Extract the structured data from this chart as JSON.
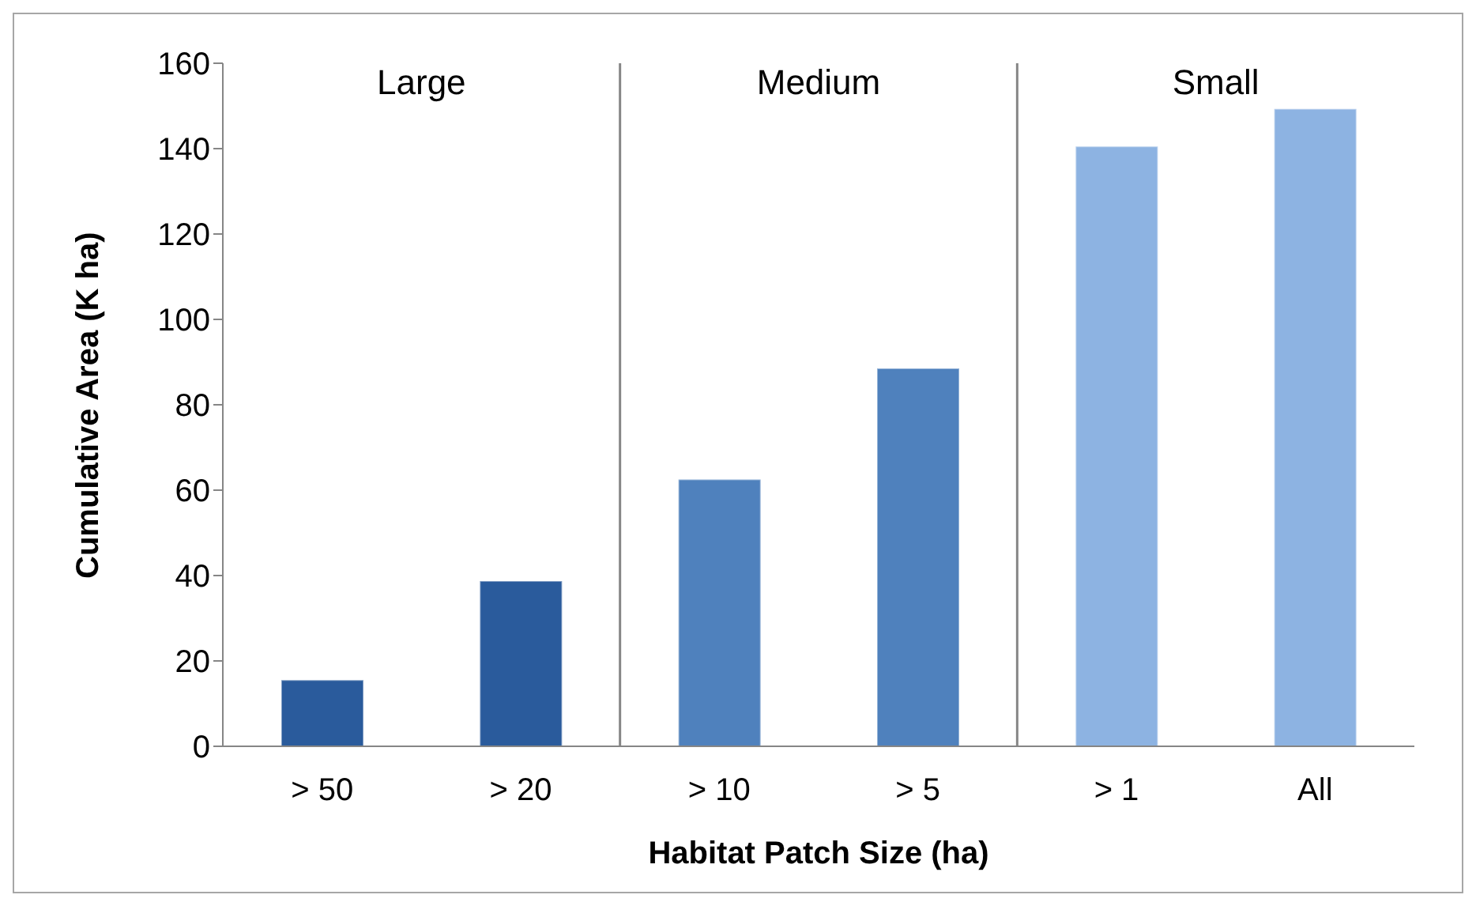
{
  "chart_data": {
    "type": "bar",
    "xlabel": "Habitat Patch Size (ha)",
    "ylabel": "Cumulative Area (K ha)",
    "categories": [
      "> 50",
      "> 20",
      "> 10",
      "> 5",
      "> 1",
      "All"
    ],
    "values": [
      15.5,
      38.7,
      62.5,
      88.5,
      140.5,
      149.3
    ],
    "colors": [
      "#2a5b9c",
      "#2a5b9c",
      "#4f81bd",
      "#4f81bd",
      "#8db3e2",
      "#8db3e2"
    ],
    "ylim": [
      0,
      160
    ],
    "yticks": [
      0,
      20,
      40,
      60,
      80,
      100,
      120,
      140,
      160
    ],
    "grid": false,
    "legend": false,
    "annotations": [
      "Large",
      "Medium",
      "Small"
    ]
  }
}
